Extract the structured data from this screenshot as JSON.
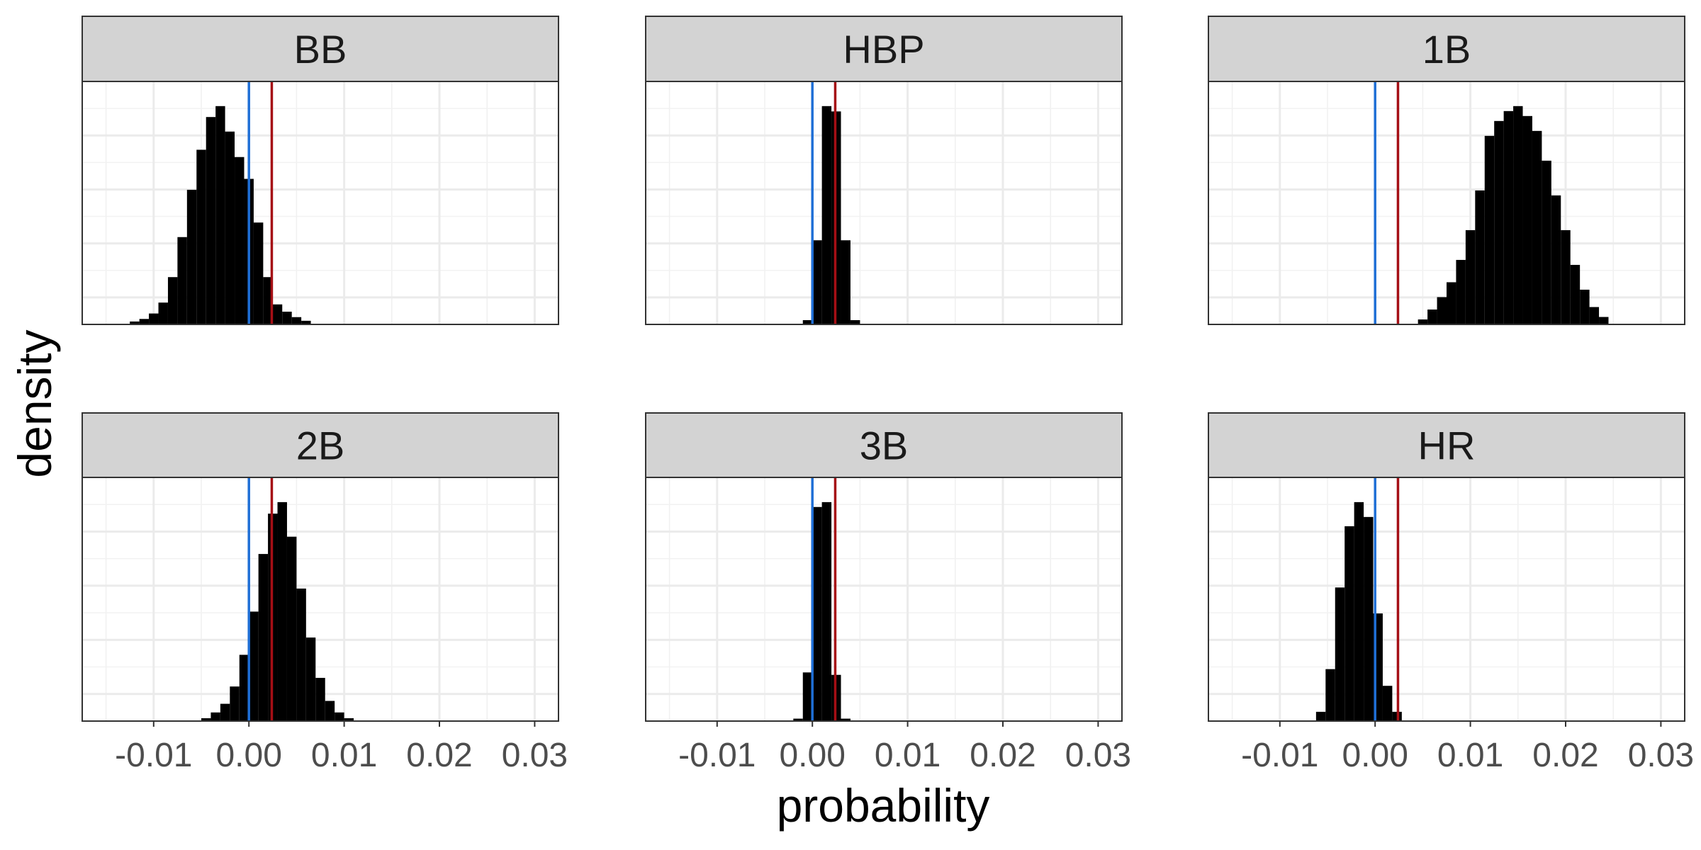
{
  "chart_data": {
    "type": "histogram",
    "layout": "facet_wrap 2x3",
    "xlabel": "probability",
    "ylabel": "density",
    "xlim": [
      -0.0175,
      0.0325
    ],
    "x_breaks": [
      -0.01,
      0.0,
      0.01,
      0.02,
      0.03
    ],
    "x_tick_labels": [
      "-0.01",
      "0.00",
      "0.01",
      "0.02",
      "0.03"
    ],
    "grid": true,
    "bin_width": 0.001,
    "reference_lines": [
      {
        "x": 0.0,
        "color": "#1f6fd6"
      },
      {
        "x": 0.0024,
        "color": "#a50f15"
      }
    ],
    "bar_color": "#000000",
    "panels": [
      {
        "label": "BB",
        "bins_start": -0.0125,
        "values": [
          0.008,
          0.015,
          0.03,
          0.06,
          0.13,
          0.24,
          0.37,
          0.48,
          0.57,
          0.6,
          0.53,
          0.46,
          0.4,
          0.28,
          0.13,
          0.055,
          0.035,
          0.02,
          0.01
        ]
      },
      {
        "label": "HBP",
        "bins_start": -0.001,
        "values": [
          0.08,
          1.58,
          4.1,
          4.0,
          1.58,
          0.08
        ]
      },
      {
        "label": "1B",
        "bins_start": 0.0045,
        "values": [
          0.01,
          0.03,
          0.055,
          0.085,
          0.13,
          0.19,
          0.27,
          0.38,
          0.41,
          0.43,
          0.44,
          0.42,
          0.39,
          0.33,
          0.26,
          0.19,
          0.12,
          0.07,
          0.035,
          0.015
        ]
      },
      {
        "label": "2B",
        "bins_start": -0.005,
        "values": [
          0.01,
          0.03,
          0.06,
          0.12,
          0.23,
          0.38,
          0.58,
          0.72,
          0.76,
          0.64,
          0.46,
          0.29,
          0.15,
          0.07,
          0.03,
          0.01
        ]
      },
      {
        "label": "3B",
        "bins_start": -0.002,
        "values": [
          0.05,
          1.0,
          4.4,
          4.5,
          0.95,
          0.05
        ]
      },
      {
        "label": "HR",
        "bins_start": -0.0062,
        "values": [
          0.05,
          0.28,
          0.72,
          1.05,
          1.18,
          1.1,
          0.58,
          0.19,
          0.05
        ]
      }
    ]
  }
}
